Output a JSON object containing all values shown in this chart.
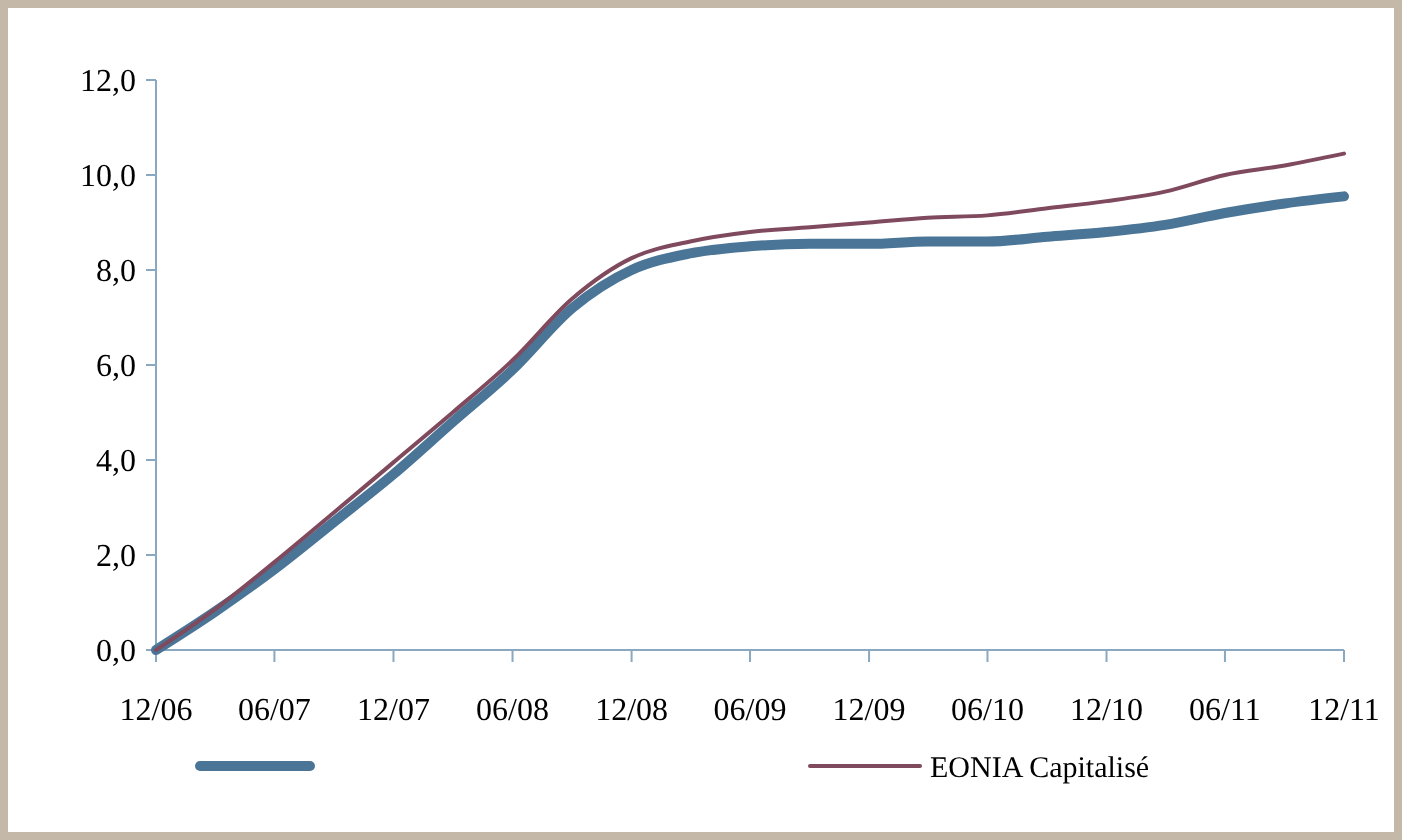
{
  "chart_data": {
    "type": "line",
    "x": [
      "2006-12",
      "2007-03",
      "2007-06",
      "2007-09",
      "2007-12",
      "2008-03",
      "2008-06",
      "2008-09",
      "2008-12",
      "2009-03",
      "2009-06",
      "2009-09",
      "2009-12",
      "2010-03",
      "2010-06",
      "2010-09",
      "2010-12",
      "2011-03",
      "2011-06",
      "2011-09",
      "2011-12"
    ],
    "series": [
      {
        "color": "#4a7596",
        "values": [
          0,
          0.8,
          1.7,
          2.7,
          3.7,
          4.8,
          5.9,
          7.2,
          8.0,
          8.35,
          8.5,
          8.55,
          8.55,
          8.6,
          8.6,
          8.7,
          8.8,
          8.95,
          9.2,
          9.4,
          9.55
        ]
      },
      {
        "name": "EONIA Capitalisé",
        "color": "#7f4a5e",
        "values": [
          0,
          0.85,
          1.85,
          2.9,
          3.95,
          5.0,
          6.1,
          7.4,
          8.25,
          8.6,
          8.8,
          8.9,
          9.0,
          9.1,
          9.15,
          9.3,
          9.45,
          9.65,
          10.0,
          10.2,
          10.45
        ]
      }
    ],
    "xlim": [
      "2006-12",
      "2011-12"
    ],
    "xticks": [
      {
        "value": "2006-12",
        "label": "12/06"
      },
      {
        "value": "2007-06",
        "label": "06/07"
      },
      {
        "value": "2007-12",
        "label": "12/07"
      },
      {
        "value": "2008-06",
        "label": "06/08"
      },
      {
        "value": "2008-12",
        "label": "12/08"
      },
      {
        "value": "2009-06",
        "label": "06/09"
      },
      {
        "value": "2009-12",
        "label": "12/09"
      },
      {
        "value": "2010-06",
        "label": "06/10"
      },
      {
        "value": "2010-12",
        "label": "12/10"
      },
      {
        "value": "2011-06",
        "label": "06/11"
      },
      {
        "value": "2011-12",
        "label": "12/11"
      }
    ],
    "ylim": [
      0,
      12
    ],
    "yticks": [
      {
        "value": 0,
        "label": "0,0"
      },
      {
        "value": 2,
        "label": "2,0"
      },
      {
        "value": 4,
        "label": "4,0"
      },
      {
        "value": 6,
        "label": "6,0"
      },
      {
        "value": 8,
        "label": "8,0"
      },
      {
        "value": 10,
        "label": "10,0"
      },
      {
        "value": 12,
        "label": "12,0"
      }
    ],
    "grid": false,
    "legend": "bottom",
    "marker": "none",
    "line_style": "solid"
  }
}
